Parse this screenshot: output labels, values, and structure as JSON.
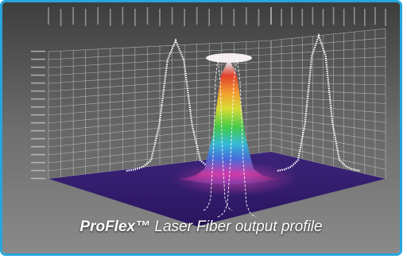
{
  "caption": {
    "brand": "ProFlex™",
    "rest": " Laser Fiber output profile"
  },
  "chart_data": {
    "type": "surface",
    "shape": "flat-top",
    "x": [
      -6,
      -5,
      -4,
      -3,
      -2,
      -1,
      0,
      1,
      2,
      3,
      4,
      5,
      6
    ],
    "intensity": [
      0.0,
      0.01,
      0.03,
      0.08,
      0.35,
      0.85,
      1.0,
      0.85,
      0.35,
      0.08,
      0.03,
      0.01,
      0.0
    ],
    "colormap": [
      "#4a2a86",
      "#7b2fa6",
      "#c02ca0",
      "#3a62d8",
      "#27b8d8",
      "#35c83d",
      "#d8dc28",
      "#f39a22",
      "#e0341e",
      "#f4f1f4"
    ],
    "wall_colors": {
      "background": "#6a6a6a",
      "grid": "#c8c8c8",
      "projection": "#ffffff"
    }
  }
}
